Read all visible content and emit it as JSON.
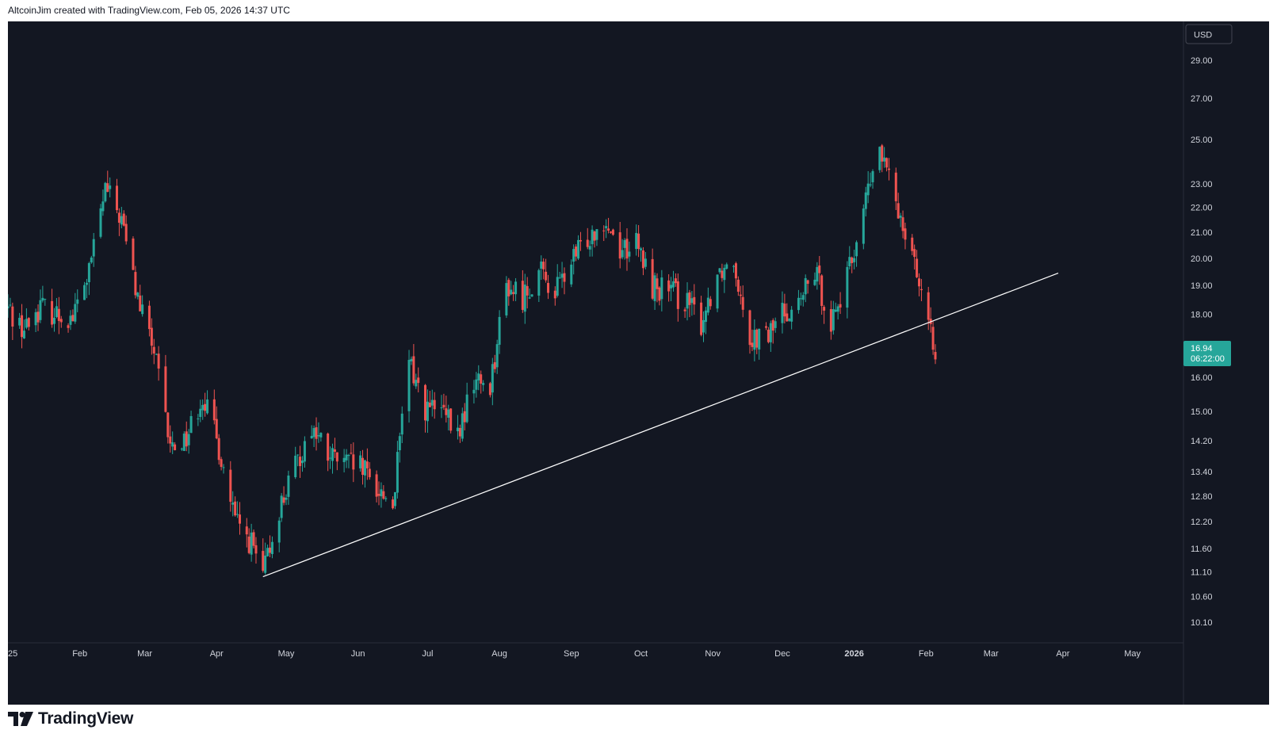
{
  "header": {
    "text": "AltcoinJim created with TradingView.com, Feb 05, 2026 14:37 UTC"
  },
  "footer": {
    "brand": "TradingView"
  },
  "colors": {
    "background": "#131722",
    "up": "#26a69a",
    "down": "#ef5350",
    "trendline": "#ffffff",
    "axis_text": "#d1d4dc",
    "price_label": "#26a69a"
  },
  "chart_data": {
    "type": "candlestick",
    "scale": "log",
    "currency_label": "USD",
    "y_ticks": [
      "29.00",
      "27.00",
      "25.00",
      "23.00",
      "22.00",
      "21.00",
      "20.00",
      "19.00",
      "18.00",
      "16.00",
      "15.00",
      "14.20",
      "13.40",
      "12.80",
      "12.20",
      "11.60",
      "11.10",
      "10.60",
      "10.10"
    ],
    "x_ticks": [
      "25",
      "Feb",
      "Mar",
      "Apr",
      "May",
      "Jun",
      "Jul",
      "Aug",
      "Sep",
      "Oct",
      "Nov",
      "Dec",
      "2026",
      "Feb",
      "Mar",
      "Apr",
      "May"
    ],
    "last_price": {
      "value": "16.94",
      "countdown": "06:22:00"
    },
    "trendline": {
      "start": {
        "date": "2025-04-21",
        "price": 11.0
      },
      "end": {
        "date": "2026-03-30",
        "price": 19.45
      }
    },
    "weekly_anchors": [
      [
        "2025-01-01",
        18.2
      ],
      [
        "2025-01-08",
        17.5
      ],
      [
        "2025-01-15",
        18.3
      ],
      [
        "2025-01-22",
        18.0
      ],
      [
        "2025-01-29",
        17.9
      ],
      [
        "2025-02-05",
        19.5
      ],
      [
        "2025-02-12",
        22.8
      ],
      [
        "2025-02-19",
        21.5
      ],
      [
        "2025-02-26",
        18.5
      ],
      [
        "2025-03-05",
        16.8
      ],
      [
        "2025-03-12",
        14.0
      ],
      [
        "2025-03-19",
        14.3
      ],
      [
        "2025-03-26",
        15.5
      ],
      [
        "2025-04-02",
        14.0
      ],
      [
        "2025-04-09",
        12.2
      ],
      [
        "2025-04-16",
        11.7
      ],
      [
        "2025-04-21",
        11.0
      ],
      [
        "2025-04-28",
        12.5
      ],
      [
        "2025-05-05",
        13.5
      ],
      [
        "2025-05-12",
        14.6
      ],
      [
        "2025-05-19",
        13.8
      ],
      [
        "2025-05-26",
        13.6
      ],
      [
        "2025-06-02",
        13.5
      ],
      [
        "2025-06-09",
        13.0
      ],
      [
        "2025-06-16",
        12.6
      ],
      [
        "2025-06-23",
        16.5
      ],
      [
        "2025-06-30",
        15.1
      ],
      [
        "2025-07-07",
        15.0
      ],
      [
        "2025-07-14",
        14.3
      ],
      [
        "2025-07-21",
        15.9
      ],
      [
        "2025-07-28",
        15.8
      ],
      [
        "2025-08-04",
        19.0
      ],
      [
        "2025-08-11",
        18.6
      ],
      [
        "2025-08-18",
        19.5
      ],
      [
        "2025-08-25",
        18.8
      ],
      [
        "2025-09-01",
        19.8
      ],
      [
        "2025-09-08",
        20.8
      ],
      [
        "2025-09-15",
        21.6
      ],
      [
        "2025-09-22",
        20.4
      ],
      [
        "2025-09-29",
        20.5
      ],
      [
        "2025-10-06",
        19.0
      ],
      [
        "2025-10-13",
        18.8
      ],
      [
        "2025-10-20",
        18.5
      ],
      [
        "2025-10-27",
        17.7
      ],
      [
        "2025-11-03",
        19.5
      ],
      [
        "2025-11-10",
        20.0
      ],
      [
        "2025-11-17",
        17.3
      ],
      [
        "2025-11-24",
        17.2
      ],
      [
        "2025-12-01",
        18.1
      ],
      [
        "2025-12-08",
        18.3
      ],
      [
        "2025-12-15",
        19.5
      ],
      [
        "2025-12-22",
        17.8
      ],
      [
        "2025-12-29",
        19.2
      ],
      [
        "2026-01-05",
        22.0
      ],
      [
        "2026-01-12",
        24.5
      ],
      [
        "2026-01-19",
        22.2
      ],
      [
        "2026-01-26",
        20.5
      ],
      [
        "2026-02-02",
        17.4
      ],
      [
        "2026-02-05",
        16.94
      ]
    ]
  }
}
